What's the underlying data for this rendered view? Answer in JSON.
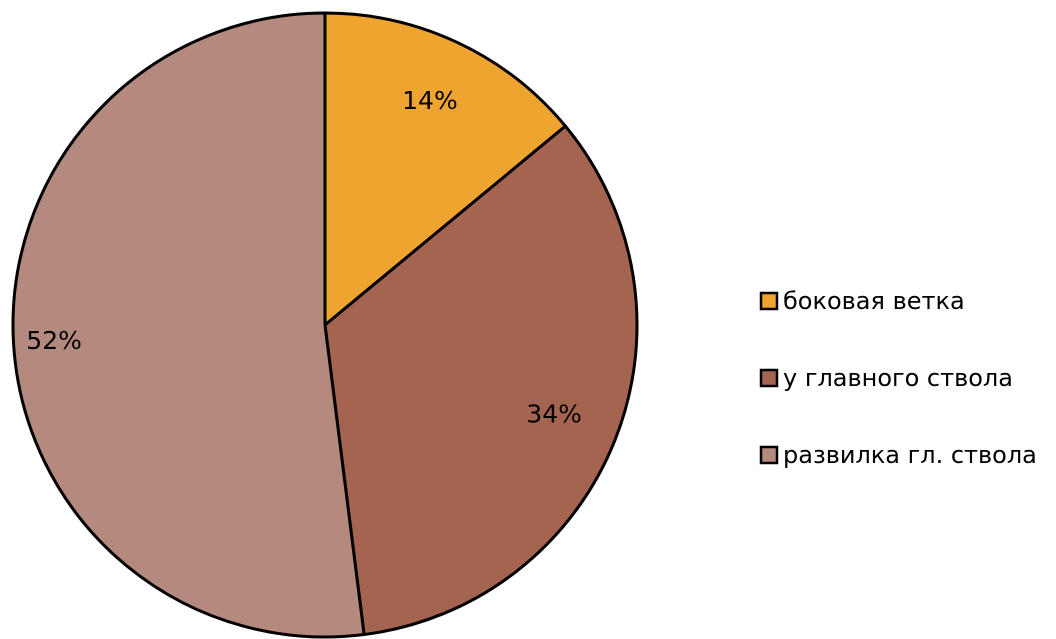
{
  "chart_data": {
    "type": "pie",
    "title": "",
    "categories": [
      "боковая ветка",
      "у главного ствола",
      "развилка гл. ствола"
    ],
    "values": [
      14,
      34,
      52
    ],
    "labels": [
      "14%",
      "34%",
      "52%"
    ],
    "colors": [
      "#F0A430",
      "#A46450",
      "#B58A7E"
    ],
    "start_angle_deg": 0,
    "direction": "clockwise",
    "legend": {
      "position": "right",
      "entries": [
        "боковая ветка",
        "у главного ствола",
        "развилка гл. ствола"
      ]
    }
  }
}
